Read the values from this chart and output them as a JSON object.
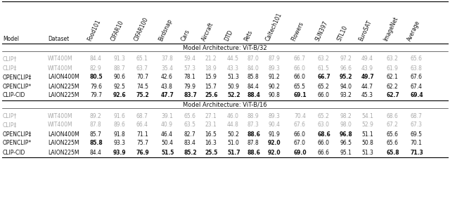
{
  "col_headers": [
    "Model",
    "Dataset",
    "Food101",
    "CIFAR10",
    "CIFAR100",
    "Birdsnap",
    "Cars",
    "Aircraft",
    "DTD",
    "Pets",
    "Caltech101",
    "Flowers",
    "SUN397",
    "STL10",
    "EuroSAT",
    "ImageNet",
    "Average"
  ],
  "section1_title": "Model Architecture: ViT-B/32",
  "section2_title": "Model Architecture: ViT-B/16",
  "rows_b32": [
    {
      "model": "CLIP†",
      "dataset": "WIT400M",
      "values": [
        "84.4",
        "91.3",
        "65.1",
        "37.8",
        "59.4",
        "21.2",
        "44.5",
        "87.0",
        "87.9",
        "66.7",
        "63.2",
        "97.2",
        "49.4",
        "63.2",
        "65.6"
      ],
      "gray": true,
      "bold_cols": []
    },
    {
      "model": "CLIP‡",
      "dataset": "WIT400M",
      "values": [
        "82.9",
        "88.7",
        "63.7",
        "35.4",
        "57.3",
        "18.9",
        "43.3",
        "84.0",
        "89.3",
        "66.0",
        "61.5",
        "96.6",
        "43.9",
        "61.9",
        "63.8"
      ],
      "gray": true,
      "bold_cols": []
    },
    {
      "model": "OPENCLIP‡",
      "dataset": "LAION400M",
      "values": [
        "80.5",
        "90.6",
        "70.7",
        "42.6",
        "78.1",
        "15.9",
        "51.3",
        "85.8",
        "91.2",
        "66.0",
        "66.7",
        "95.2",
        "49.7",
        "62.1",
        "67.6"
      ],
      "gray": false,
      "bold_cols": [
        0,
        10,
        11,
        12
      ]
    },
    {
      "model": "OPENCLIP*",
      "dataset": "LAION225M",
      "values": [
        "79.6",
        "92.5",
        "74.5",
        "43.8",
        "79.9",
        "15.7",
        "50.9",
        "84.4",
        "90.2",
        "65.5",
        "65.2",
        "94.0",
        "44.7",
        "62.2",
        "67.4"
      ],
      "gray": false,
      "bold_cols": []
    },
    {
      "model": "CLIP-CID",
      "dataset": "LAION225M",
      "values": [
        "79.7",
        "92.6",
        "75.2",
        "47.7",
        "83.7",
        "25.6",
        "52.2",
        "88.4",
        "90.8",
        "69.1",
        "66.0",
        "93.2",
        "45.3",
        "62.7",
        "69.4"
      ],
      "gray": false,
      "bold_cols": [
        1,
        2,
        3,
        4,
        5,
        6,
        7,
        9,
        13,
        14
      ]
    }
  ],
  "rows_b16": [
    {
      "model": "CLIP†",
      "dataset": "WIT400M",
      "values": [
        "89.2",
        "91.6",
        "68.7",
        "39.1",
        "65.6",
        "27.1",
        "46.0",
        "88.9",
        "89.3",
        "70.4",
        "65.2",
        "98.2",
        "54.1",
        "68.6",
        "68.7"
      ],
      "gray": true,
      "bold_cols": []
    },
    {
      "model": "CLIP‡",
      "dataset": "WIT400M",
      "values": [
        "87.8",
        "89.6",
        "66.4",
        "40.9",
        "63.5",
        "23.1",
        "44.8",
        "87.3",
        "90.4",
        "67.6",
        "63.0",
        "98.0",
        "52.9",
        "67.2",
        "67.3"
      ],
      "gray": true,
      "bold_cols": []
    },
    {
      "model": "OPENCLIP‡",
      "dataset": "LAION400M",
      "values": [
        "85.7",
        "91.8",
        "71.1",
        "46.4",
        "82.7",
        "16.5",
        "50.2",
        "88.6",
        "91.9",
        "66.0",
        "68.6",
        "96.8",
        "51.1",
        "65.6",
        "69.5"
      ],
      "gray": false,
      "bold_cols": [
        7,
        10,
        11
      ]
    },
    {
      "model": "OPENCLIP*",
      "dataset": "LAION225M",
      "values": [
        "85.8",
        "93.3",
        "75.7",
        "50.4",
        "83.4",
        "16.3",
        "51.0",
        "87.8",
        "92.0",
        "67.0",
        "66.0",
        "96.5",
        "50.8",
        "65.6",
        "70.1"
      ],
      "gray": false,
      "bold_cols": [
        0,
        8
      ]
    },
    {
      "model": "CLIP-CID",
      "dataset": "LAION225M",
      "values": [
        "84.4",
        "93.9",
        "76.9",
        "51.5",
        "85.2",
        "25.5",
        "51.7",
        "88.6",
        "92.0",
        "69.0",
        "66.6",
        "95.1",
        "51.3",
        "65.8",
        "71.3"
      ],
      "gray": false,
      "bold_cols": [
        1,
        2,
        3,
        4,
        5,
        6,
        7,
        8,
        9,
        13,
        14
      ]
    }
  ],
  "gray_color": "#aaaaaa",
  "black_color": "#111111",
  "bg_color": "#ffffff"
}
